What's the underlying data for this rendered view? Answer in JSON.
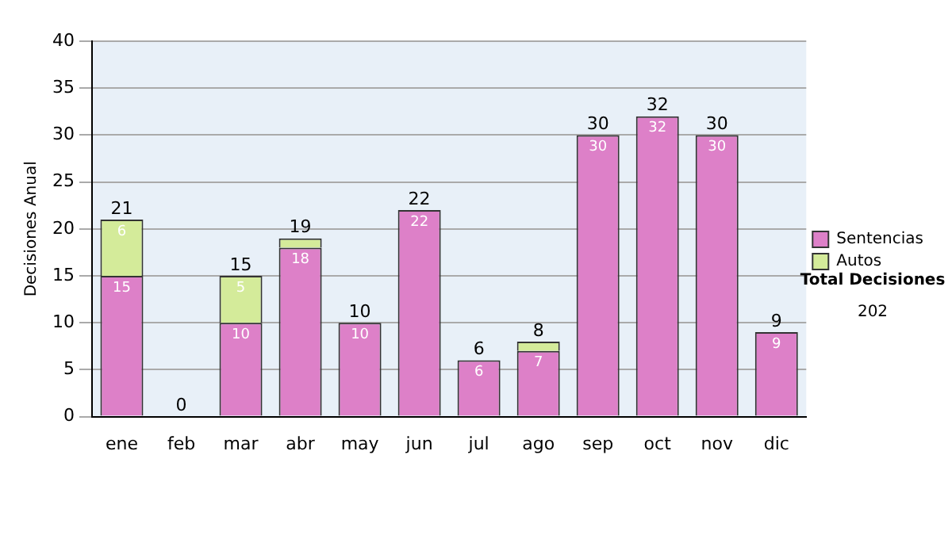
{
  "chart_data": {
    "type": "bar",
    "stacked": true,
    "ylabel": "Decisiones Anual",
    "categories": [
      "ene",
      "feb",
      "mar",
      "abr",
      "may",
      "jun",
      "jul",
      "ago",
      "sep",
      "oct",
      "nov",
      "dic"
    ],
    "series": [
      {
        "name": "Sentencias",
        "color": "#dd80c8",
        "values": [
          15,
          0,
          10,
          18,
          10,
          22,
          6,
          7,
          30,
          32,
          30,
          9
        ],
        "value_labels": [
          "15",
          null,
          "10",
          "18",
          "10",
          "22",
          "6",
          "7",
          "30",
          "32",
          "30",
          "9"
        ]
      },
      {
        "name": "Autos",
        "color": "#d4eb9a",
        "values": [
          6,
          0,
          5,
          1,
          0,
          0,
          0,
          1,
          0,
          0,
          0,
          0
        ],
        "value_labels": [
          "6",
          null,
          "5",
          null,
          null,
          null,
          null,
          null,
          null,
          null,
          null,
          null
        ]
      }
    ],
    "totals": [
      "21",
      "0",
      "15",
      "19",
      "10",
      "22",
      "6",
      "8",
      "30",
      "32",
      "30",
      "9"
    ],
    "ylim": [
      0,
      40
    ],
    "yticks": [
      0,
      5,
      10,
      15,
      20,
      25,
      30,
      35,
      40
    ],
    "grid": "y",
    "legend": "right",
    "annotations": [
      "Total Decisiones",
      "202"
    ]
  }
}
